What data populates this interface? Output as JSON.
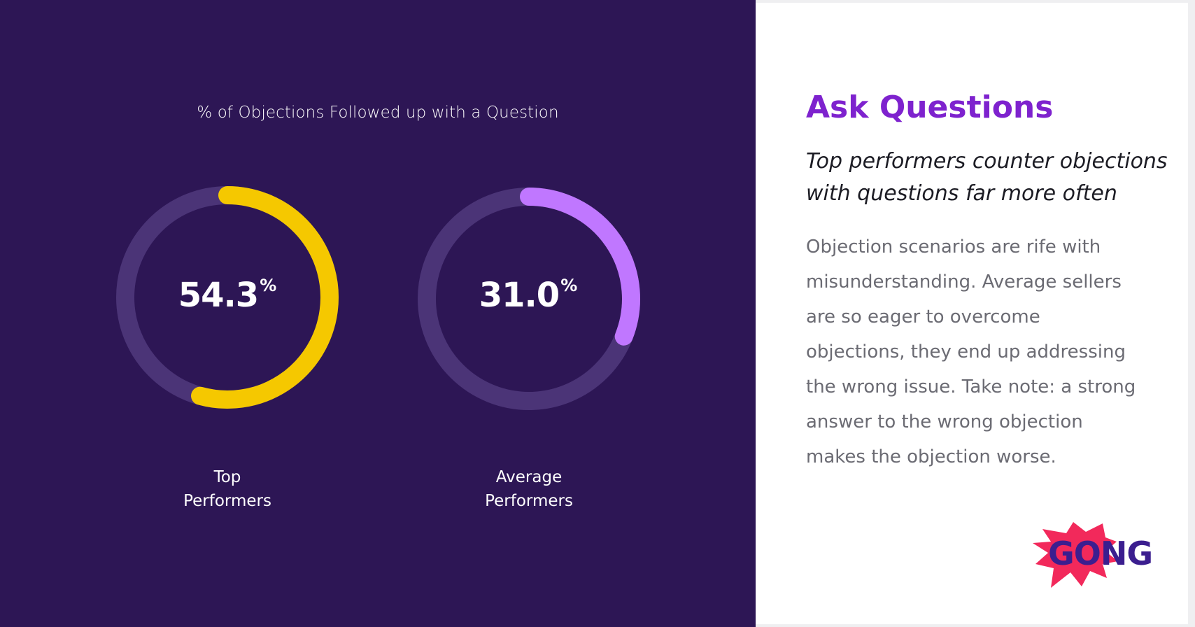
{
  "chart_data": {
    "type": "donut",
    "title": "% of Objections Followed up with a Question",
    "series": [
      {
        "name": "Top Performers",
        "label_lines": [
          "Top",
          "Performers"
        ],
        "value": 54.3,
        "display": "54.3",
        "unit": "%",
        "color": "#f5c800"
      },
      {
        "name": "Average Performers",
        "label_lines": [
          "Average",
          "Performers"
        ],
        "value": 31.0,
        "display": "31.0",
        "unit": "%",
        "color": "#c077ff"
      }
    ],
    "max": 100,
    "track_color": "#4b3477"
  },
  "panel": {
    "heading": "Ask Questions",
    "subheading": "Top performers counter objections with questions far more often",
    "body": "Objection scenarios are rife with misunderstanding. Average sellers are so eager to overcome objections, they end up addressing the wrong issue. Take note: a strong answer to the wrong objection makes the objection worse."
  },
  "logo": {
    "text_a": "GO",
    "text_b": "NG",
    "burst_color": "#f2295b"
  }
}
